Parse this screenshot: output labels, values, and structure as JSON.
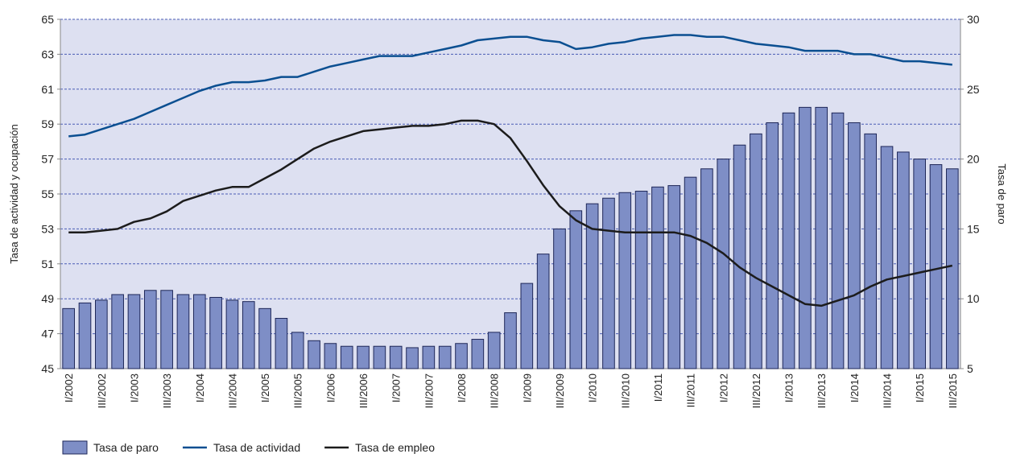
{
  "chart_data": {
    "type": "bar",
    "categories": [
      "I/2002",
      null,
      "III/2002",
      null,
      "I/2003",
      null,
      "III/2003",
      null,
      "I/2004",
      null,
      "III/2004",
      null,
      "I/2005",
      null,
      "III/2005",
      null,
      "I/2006",
      null,
      "III/2006",
      null,
      "I/2007",
      null,
      "III/2007",
      null,
      "I/2008",
      null,
      "III/2008",
      null,
      "I/2009",
      null,
      "III/2009",
      null,
      "I/2010",
      null,
      "III/2010",
      null,
      "I/2011",
      null,
      "III/2011",
      null,
      "I/2012",
      null,
      "III/2012",
      null,
      "I/2013",
      null,
      "III/2013",
      null,
      "I/2014",
      null,
      "III/2014",
      null,
      "I/2015",
      null,
      "III/2015"
    ],
    "series": [
      {
        "name": "Tasa de paro",
        "type": "bar",
        "axis": "y2",
        "color": "#7e8ec6",
        "values": [
          9.3,
          9.7,
          9.9,
          10.3,
          10.3,
          10.6,
          10.6,
          10.3,
          10.3,
          10.1,
          9.9,
          9.8,
          9.3,
          8.6,
          7.6,
          7.0,
          6.8,
          6.6,
          6.6,
          6.6,
          6.6,
          6.5,
          6.6,
          6.6,
          6.8,
          7.1,
          7.6,
          9.0,
          11.1,
          13.2,
          15.0,
          16.3,
          16.8,
          17.2,
          17.6,
          17.7,
          18.0,
          18.1,
          18.7,
          19.3,
          20.0,
          21.0,
          21.8,
          22.6,
          23.3,
          23.7,
          23.7,
          23.3,
          22.6,
          21.8,
          20.9,
          20.5,
          20.0,
          19.6,
          19.3
        ]
      },
      {
        "name": "Tasa de actividad",
        "type": "line",
        "color": "#0b4f91",
        "values": [
          58.3,
          58.4,
          58.7,
          59.0,
          59.3,
          59.7,
          60.1,
          60.5,
          60.9,
          61.2,
          61.4,
          61.4,
          61.5,
          61.7,
          61.7,
          62.0,
          62.3,
          62.5,
          62.7,
          62.9,
          62.9,
          62.9,
          63.1,
          63.3,
          63.5,
          63.8,
          63.9,
          64.0,
          64.0,
          63.8,
          63.7,
          63.3,
          63.4,
          63.6,
          63.7,
          63.9,
          64.0,
          64.1,
          64.1,
          64.0,
          64.0,
          63.8,
          63.6,
          63.5,
          63.4,
          63.2,
          63.2,
          63.2,
          63.0,
          63.0,
          62.8,
          62.6,
          62.6,
          62.5,
          62.4
        ]
      },
      {
        "name": "Tasa de empleo",
        "type": "line",
        "color": "#1c1c1c",
        "values": [
          52.8,
          52.8,
          52.9,
          53.0,
          53.4,
          53.6,
          54.0,
          54.6,
          54.9,
          55.2,
          55.4,
          55.4,
          55.9,
          56.4,
          57.0,
          57.6,
          58.0,
          58.3,
          58.6,
          58.7,
          58.8,
          58.9,
          58.9,
          59.0,
          59.2,
          59.2,
          59.0,
          58.2,
          56.9,
          55.5,
          54.3,
          53.5,
          53.0,
          52.9,
          52.8,
          52.8,
          52.8,
          52.8,
          52.6,
          52.2,
          51.6,
          50.8,
          50.2,
          49.7,
          49.2,
          48.7,
          48.6,
          48.9,
          49.2,
          49.7,
          50.1,
          50.3,
          50.5,
          50.7,
          50.9
        ]
      }
    ],
    "ylabel": "Tasa de actividad y ocupación",
    "y2label": "Tasa de paro",
    "ylim": [
      45,
      65
    ],
    "yticks": [
      45,
      47,
      49,
      51,
      53,
      55,
      57,
      59,
      61,
      63,
      65
    ],
    "y2lim": [
      5,
      30
    ],
    "y2ticks": [
      5,
      10,
      15,
      20,
      25,
      30
    ],
    "grid": true,
    "legend": "bottom-left"
  }
}
